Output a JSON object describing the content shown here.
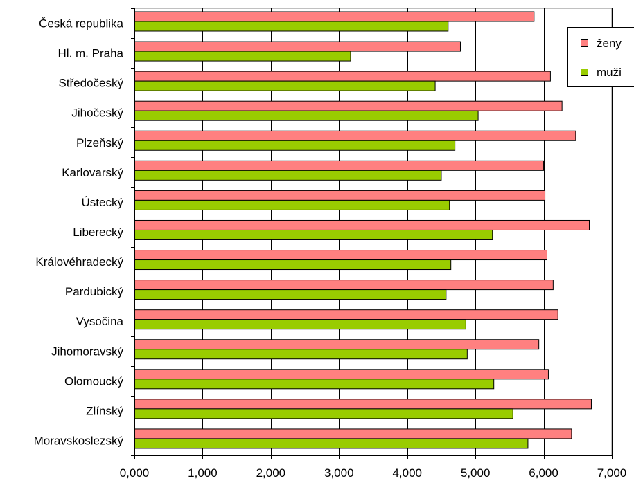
{
  "chart_data": {
    "type": "bar",
    "orientation": "horizontal",
    "categories": [
      "Česká republika",
      "Hl. m. Praha",
      "Středočeský",
      "Jihočeský",
      "Plzeňský",
      "Karlovarský",
      "Ústecký",
      "Liberecký",
      "Královéhradecký",
      "Pardubický",
      "Vysočina",
      "Jihomoravský",
      "Olomoucký",
      "Zlínský",
      "Moravskoslezský"
    ],
    "series": [
      {
        "name": "ženy",
        "color": "#ff8080",
        "values": [
          5.86,
          4.78,
          6.1,
          6.27,
          6.47,
          6.0,
          6.02,
          6.67,
          6.05,
          6.14,
          6.21,
          5.93,
          6.07,
          6.7,
          6.41
        ]
      },
      {
        "name": "muži",
        "color": "#99cc00",
        "values": [
          4.6,
          3.17,
          4.41,
          5.04,
          4.7,
          4.5,
          4.62,
          5.25,
          4.64,
          4.57,
          4.86,
          4.88,
          5.27,
          5.55,
          5.77
        ]
      }
    ],
    "xlim": [
      0,
      7
    ],
    "xticks": [
      "0,000",
      "1,000",
      "2,000",
      "3,000",
      "4,000",
      "5,000",
      "6,000",
      "7,000"
    ],
    "grid": true,
    "legend_position": "top-right",
    "title": "",
    "xlabel": "",
    "ylabel": ""
  }
}
